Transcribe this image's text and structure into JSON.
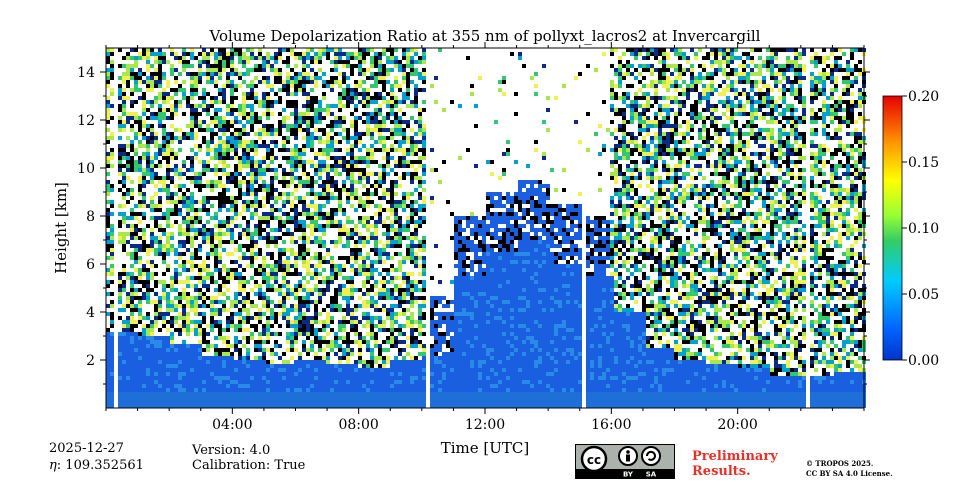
{
  "chart_data": {
    "type": "heatmap",
    "title": "Volume Depolarization Ratio at 355 nm of pollyxt_lacros2 at Invercargill",
    "xlabel": "Time [UTC]",
    "ylabel": "Height [km]",
    "xlim": [
      0,
      24
    ],
    "ylim": [
      0,
      15
    ],
    "x_ticks": [
      4,
      8,
      12,
      16,
      20
    ],
    "x_tick_labels": [
      "04:00",
      "08:00",
      "12:00",
      "16:00",
      "20:00"
    ],
    "y_ticks": [
      2,
      4,
      6,
      8,
      10,
      12,
      14
    ],
    "y_tick_labels": [
      "2",
      "4",
      "6",
      "8",
      "10",
      "12",
      "14"
    ],
    "colorbar": {
      "min": 0.0,
      "max": 0.2,
      "ticks": [
        0.0,
        0.05,
        0.1,
        0.15,
        0.2
      ],
      "tick_labels": [
        "0.00",
        "0.05",
        "0.10",
        "0.15",
        "0.20"
      ],
      "colormap": "jet"
    },
    "data_gaps_hours": [
      [
        0.3,
        0.35
      ],
      [
        10.05,
        10.2
      ],
      [
        15.05,
        15.15
      ],
      [
        22.05,
        22.2
      ]
    ],
    "low_depol_layer_top_km": [
      3.2,
      3.0,
      2.6,
      2.2,
      2.0,
      1.9,
      2.0,
      1.8,
      1.6,
      2.0,
      2.2,
      5.5,
      6.5,
      7.0,
      6.0,
      5.5,
      4.0,
      2.5,
      2.0,
      1.8,
      1.6,
      1.4,
      1.3,
      1.5
    ]
  },
  "meta": {
    "date": "2025-12-27",
    "eta_label": "η",
    "eta_value": ": 109.352561",
    "version": "Version: 4.0",
    "calibration": "Calibration: True",
    "preliminary": "Preliminary\nResults.",
    "copyright": "© TROPOS 2025.\nCC BY SA 4.0 License."
  },
  "colors": {
    "background": "#ffffff",
    "preliminary_text": "#e8302a"
  }
}
